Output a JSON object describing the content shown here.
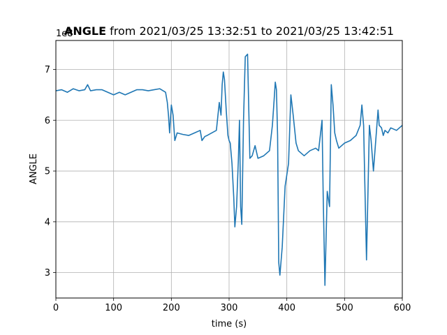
{
  "chart_data": {
    "type": "line",
    "title_bold": "ANGLE",
    "title_rest": " from 2021/03/25 13:32:51 to 2021/03/25 13:42:51",
    "xlabel": "time (s)",
    "ylabel": "ANGLE",
    "offset_text": "1e8",
    "xlim": [
      0,
      600
    ],
    "ylim": [
      2.5,
      7.57
    ],
    "xticks": [
      0,
      100,
      200,
      300,
      400,
      500,
      600
    ],
    "yticks": [
      3,
      4,
      5,
      6,
      7
    ],
    "grid": true,
    "line_color": "#1f77b4",
    "series": [
      {
        "x": [
          0,
          10,
          20,
          30,
          40,
          50,
          55,
          60,
          70,
          80,
          90,
          100,
          110,
          120,
          130,
          140,
          150,
          160,
          170,
          180,
          190,
          193,
          195,
          197,
          200,
          203,
          206,
          210,
          220,
          230,
          240,
          250,
          253,
          258,
          262,
          270,
          278,
          283,
          286,
          288,
          290,
          292,
          295,
          298,
          300,
          302,
          305,
          308,
          310,
          313,
          316,
          318,
          320,
          322,
          325,
          328,
          332,
          336,
          340,
          345,
          350,
          360,
          370,
          375,
          378,
          380,
          382,
          384,
          386,
          388,
          392,
          397,
          403,
          407,
          411,
          416,
          420,
          430,
          440,
          450,
          455,
          458,
          461,
          463,
          466,
          470,
          474,
          477,
          480,
          483,
          486,
          490,
          500,
          510,
          520,
          527,
          530,
          533,
          535,
          538,
          540,
          543,
          546,
          550,
          554,
          558,
          560,
          564,
          567,
          570,
          575,
          580,
          590,
          600
        ],
        "y": [
          6.58,
          6.6,
          6.55,
          6.62,
          6.58,
          6.6,
          6.7,
          6.58,
          6.6,
          6.6,
          6.55,
          6.5,
          6.55,
          6.5,
          6.55,
          6.6,
          6.6,
          6.58,
          6.6,
          6.62,
          6.55,
          6.35,
          6.1,
          5.75,
          6.3,
          6.1,
          5.6,
          5.75,
          5.72,
          5.7,
          5.75,
          5.8,
          5.6,
          5.68,
          5.7,
          5.75,
          5.8,
          6.35,
          6.1,
          6.7,
          6.95,
          6.8,
          6.2,
          5.7,
          5.6,
          5.55,
          5.15,
          4.5,
          3.9,
          4.3,
          5.2,
          6.0,
          4.3,
          3.95,
          6.0,
          7.25,
          7.3,
          5.25,
          5.3,
          5.5,
          5.25,
          5.3,
          5.4,
          5.9,
          6.4,
          6.75,
          6.6,
          5.7,
          3.2,
          2.95,
          3.5,
          4.7,
          5.15,
          6.5,
          6.1,
          5.55,
          5.4,
          5.3,
          5.4,
          5.45,
          5.4,
          5.7,
          6.0,
          4.5,
          2.75,
          4.6,
          4.3,
          6.7,
          6.3,
          5.75,
          5.6,
          5.45,
          5.55,
          5.6,
          5.7,
          5.9,
          6.3,
          5.9,
          4.8,
          3.25,
          4.3,
          5.9,
          5.6,
          5.0,
          5.6,
          6.2,
          5.9,
          5.85,
          5.7,
          5.8,
          5.75,
          5.85,
          5.8,
          5.9
        ]
      }
    ]
  }
}
